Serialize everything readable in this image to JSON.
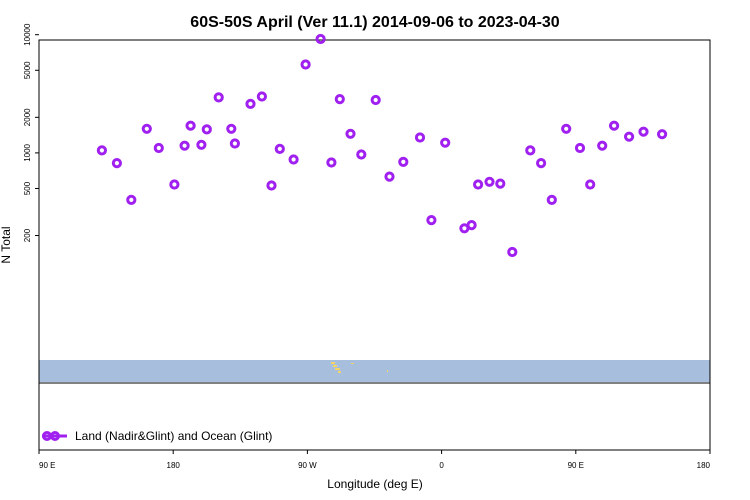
{
  "chart_data": {
    "type": "scatter",
    "title": "60S-50S April (Ver 11.1)   2014-09-06 to 2023-04-30",
    "xlabel": "Longitude (deg E)",
    "ylabel": "N Total",
    "x_tick_labels": [
      "90 E",
      "180",
      "90 W",
      "0",
      "90 E",
      "180"
    ],
    "y_tick_labels": [
      "10000",
      "5000",
      "2000",
      "1000",
      "500",
      "200"
    ],
    "y_scale": "log",
    "ylim": [
      130,
      10500
    ],
    "legend": {
      "label": "Land (Nadir&Glint) and Ocean (Glint)",
      "placement": "bottom-left"
    },
    "series": [
      {
        "name": "Land (Nadir&Glint) and Ocean (Glint)",
        "color": "#a020f0",
        "x": [
          105,
          130,
          154,
          180,
          200,
          226,
          243,
          253,
          271,
          280,
          300,
          321,
          327,
          353,
          372,
          388,
          402,
          425,
          445,
          470,
          488,
          502,
          520,
          538,
          562,
          585,
          608,
          636,
          655,
          678,
          710,
          722,
          733,
          752,
          770,
          790,
          820,
          838,
          856,
          880,
          903,
          920,
          940,
          960,
          985,
          1009,
          1040
        ],
        "y": [
          1050,
          820,
          400,
          1600,
          1100,
          540,
          1150,
          1700,
          1170,
          1580,
          2950,
          1600,
          1200,
          2600,
          3000,
          530,
          1080,
          880,
          5600,
          9200,
          830,
          2850,
          1450,
          970,
          2800,
          630,
          840,
          1350,
          270,
          1220,
          230,
          245,
          540,
          570,
          550,
          145,
          1050,
          820,
          400,
          1600,
          1100,
          540,
          1150,
          1700,
          1370,
          1510,
          1440
        ]
      }
    ]
  },
  "background_bands": {
    "ocean_color": "#a8bedd",
    "land_color": "#f5d36b"
  }
}
